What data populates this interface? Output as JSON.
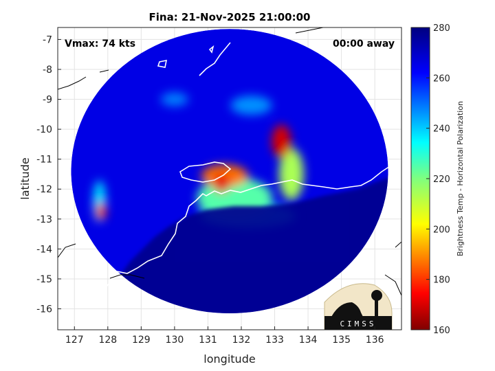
{
  "chart_data": {
    "type": "heatmap",
    "title": "Fina: 21-Nov-2025 21:00:00",
    "xlabel": "longitude",
    "ylabel": "latitude",
    "xlim": [
      126.5,
      136.8
    ],
    "ylim": [
      -16.7,
      -6.6
    ],
    "x_ticks": [
      127,
      128,
      129,
      130,
      131,
      132,
      133,
      134,
      135,
      136
    ],
    "y_ticks": [
      -7,
      -8,
      -9,
      -10,
      -11,
      -12,
      -13,
      -14,
      -15,
      -16
    ],
    "grid": true,
    "colorbar": {
      "label": "Brightness Temp - Horizontal Polarization",
      "range": [
        160,
        280
      ],
      "ticks": [
        160,
        180,
        200,
        220,
        240,
        260,
        280
      ],
      "colormap": "jet"
    },
    "swath": {
      "center": [
        131.65,
        -11.4
      ],
      "radius_lon": 4.75,
      "radius_lat": 4.75
    },
    "background_value": 268,
    "features": [
      {
        "name": "eyewall-north",
        "lon": 131.5,
        "lat": -11.55,
        "value": 188
      },
      {
        "name": "eyewall-core",
        "lon": 131.4,
        "lat": -11.8,
        "value": 172
      },
      {
        "name": "eyewall-ring",
        "lon": 131.8,
        "lat": -12.3,
        "value": 225
      },
      {
        "name": "rainband-east",
        "lon": 133.2,
        "lat": -10.4,
        "value": 170
      },
      {
        "name": "rainband-east-tail",
        "lon": 133.5,
        "lat": -11.5,
        "value": 215
      },
      {
        "name": "outer-band",
        "lon": 132.2,
        "lat": -12.9,
        "value": 232
      },
      {
        "name": "western-cell",
        "lon": 127.8,
        "lat": -12.75,
        "value": 182
      },
      {
        "name": "western-cell-halo",
        "lon": 127.75,
        "lat": -12.4,
        "value": 238
      },
      {
        "name": "northern-cell",
        "lon": 132.3,
        "lat": -9.2,
        "value": 248
      },
      {
        "name": "northern-cell-2",
        "lon": 130.0,
        "lat": -9.0,
        "value": 250
      }
    ]
  },
  "annotations": {
    "vmax": "Vmax: 74 kts",
    "time_away": "00:00 away"
  },
  "logo": {
    "text": "CIMSS"
  }
}
